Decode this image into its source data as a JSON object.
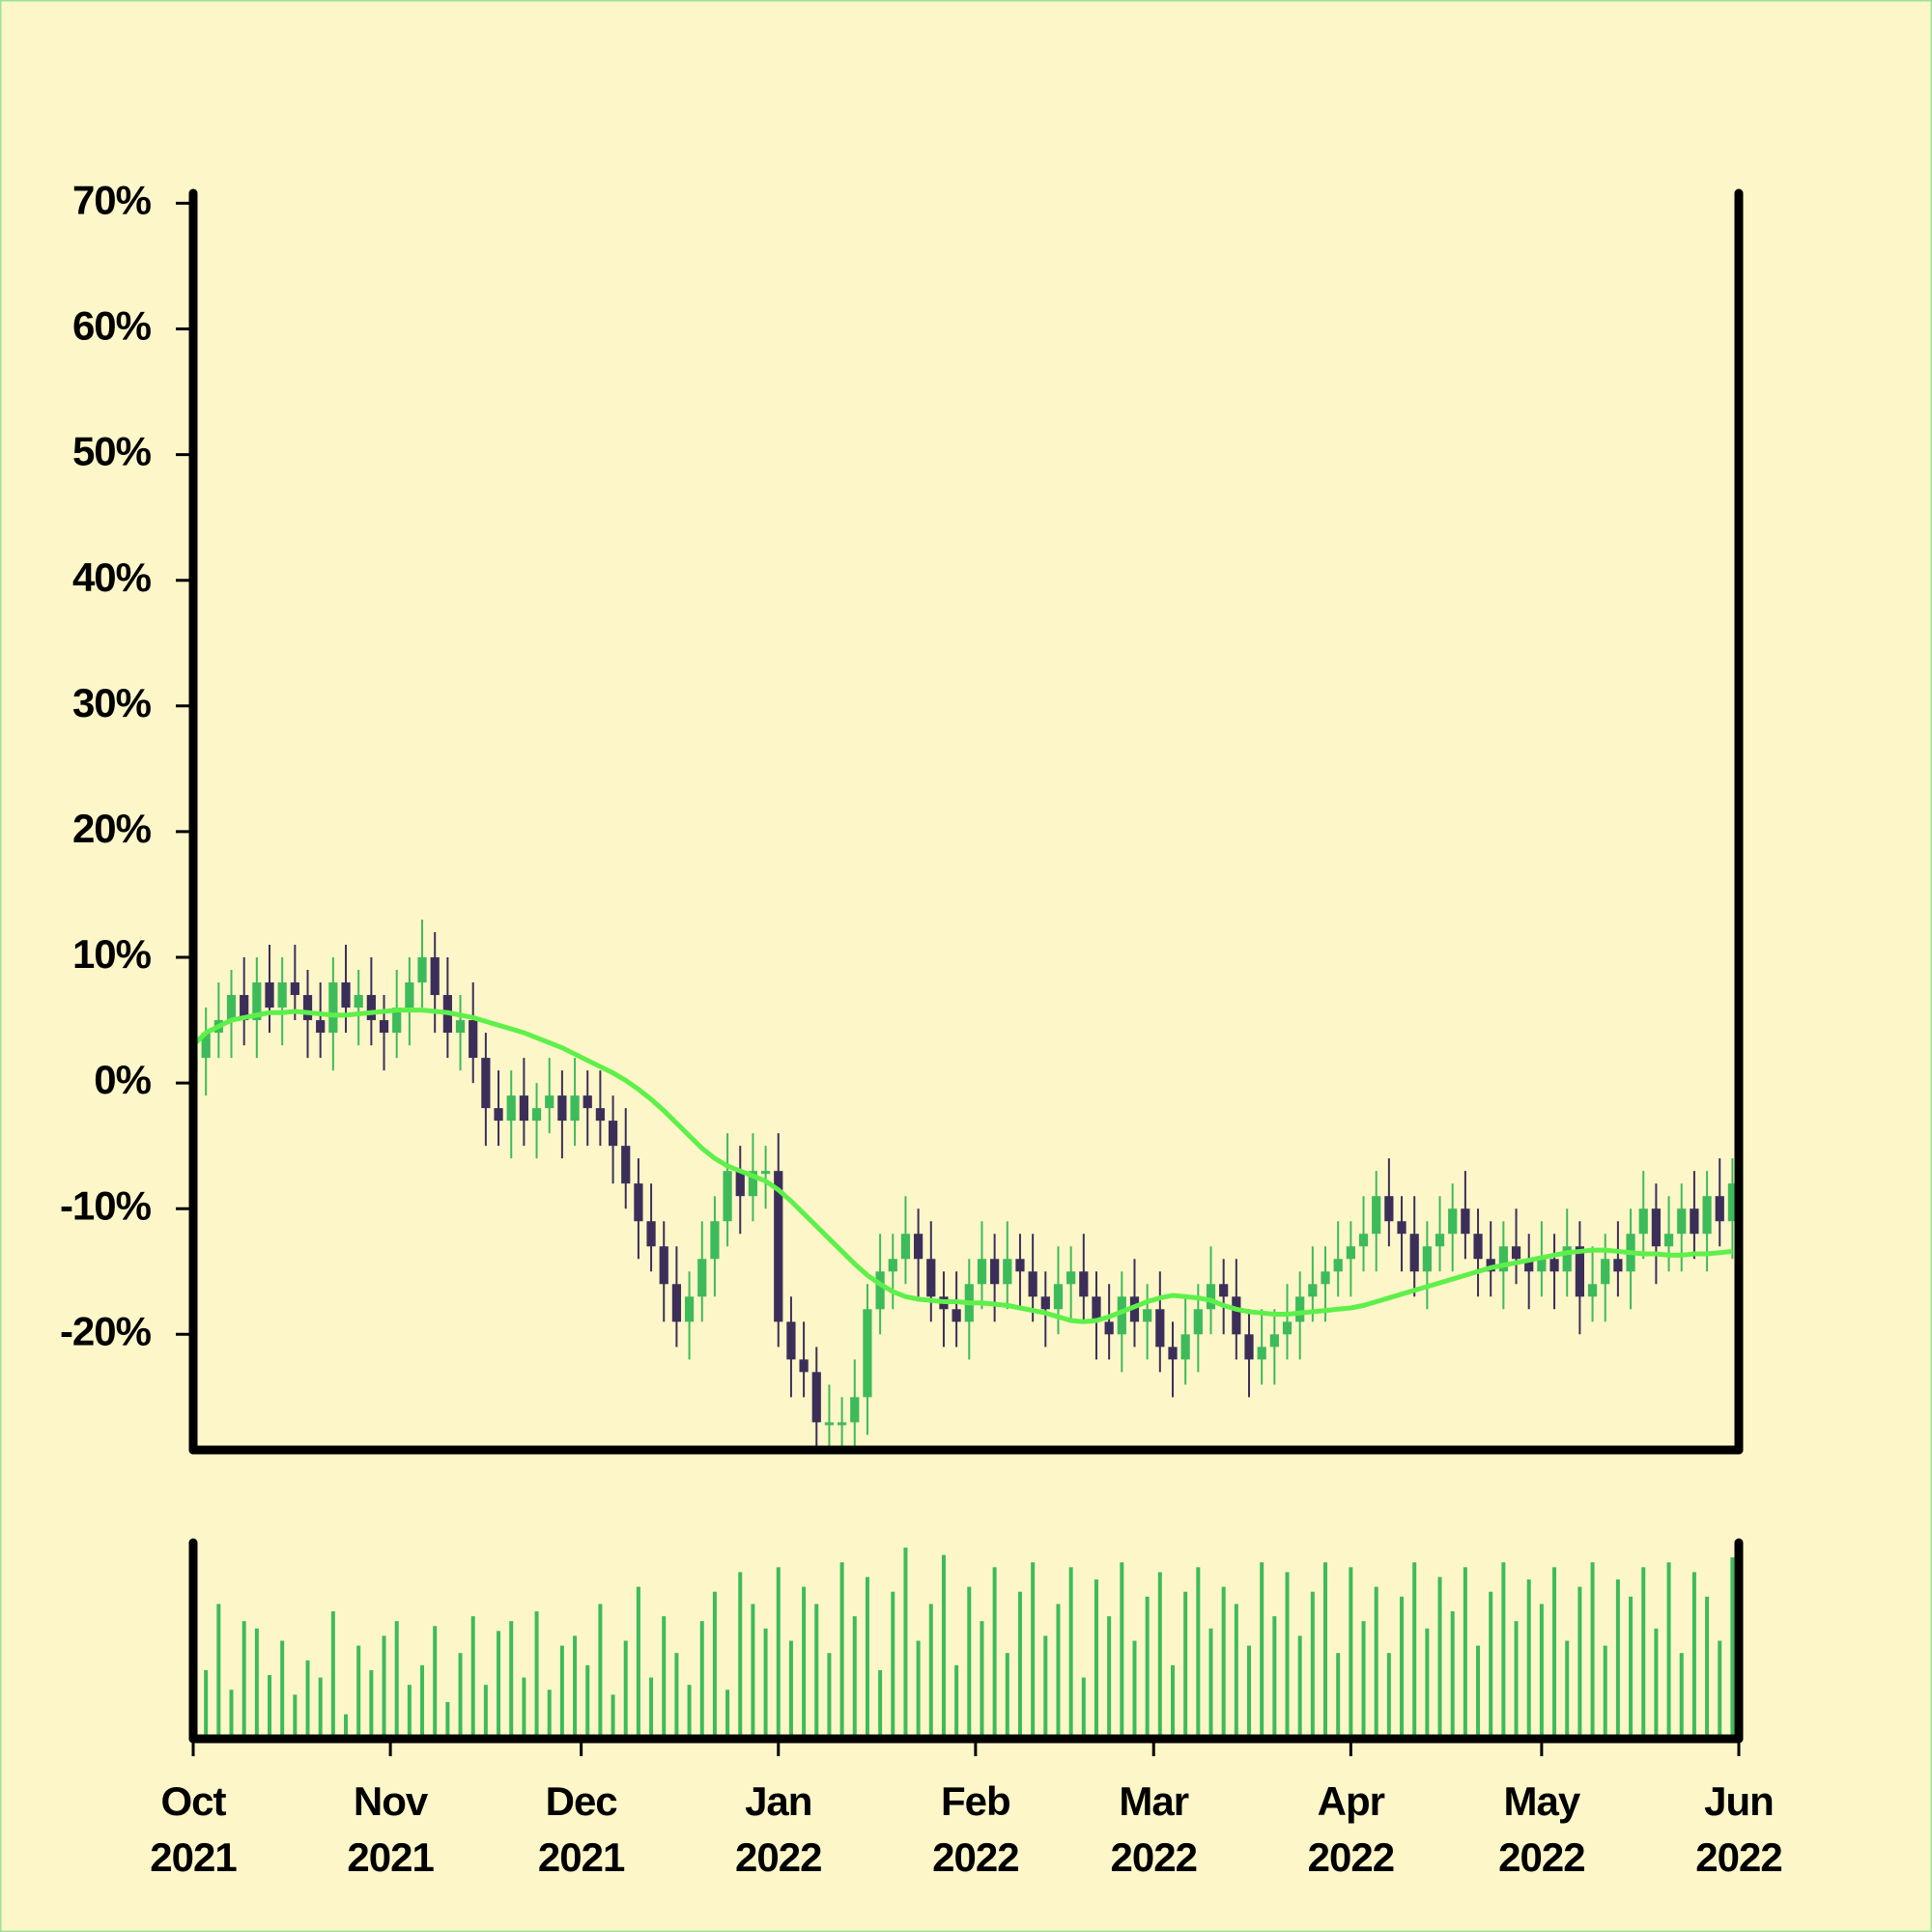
{
  "chart_data": {
    "type": "candlestick",
    "up_color": "#3dbb5a",
    "down_color": "#3b2f5a",
    "ma_color": "#5ef04a",
    "volume_color": "#3dbb5a",
    "xlim": [
      0,
      243
    ],
    "xticks": [
      {
        "value": 0,
        "label": [
          "Oct",
          "2021"
        ]
      },
      {
        "value": 31,
        "label": [
          "Nov",
          "2021"
        ]
      },
      {
        "value": 61,
        "label": [
          "Dec",
          "2021"
        ]
      },
      {
        "value": 92,
        "label": [
          "Jan",
          "2022"
        ]
      },
      {
        "value": 123,
        "label": [
          "Feb",
          "2022"
        ]
      },
      {
        "value": 151,
        "label": [
          "Mar",
          "2022"
        ]
      },
      {
        "value": 182,
        "label": [
          "Apr",
          "2022"
        ]
      },
      {
        "value": 212,
        "label": [
          "May",
          "2022"
        ]
      },
      {
        "value": 243,
        "label": [
          "Jun",
          "2022"
        ]
      }
    ],
    "ylim": [
      -29.2,
      70.8
    ],
    "yticks": [
      {
        "value": -20,
        "label": "-20%"
      },
      {
        "value": -10,
        "label": "-10%"
      },
      {
        "value": 0,
        "label": "0%"
      },
      {
        "value": 10,
        "label": "10%"
      },
      {
        "value": 20,
        "label": "20%"
      },
      {
        "value": 30,
        "label": "30%"
      },
      {
        "value": 40,
        "label": "40%"
      },
      {
        "value": 50,
        "label": "50%"
      },
      {
        "value": 60,
        "label": "60%"
      },
      {
        "value": 70,
        "label": "70%"
      }
    ],
    "volume_lim": [
      0,
      80
    ],
    "x": [
      0,
      2,
      4,
      6,
      8,
      10,
      12,
      14,
      16,
      18,
      20,
      22,
      24,
      26,
      28,
      30,
      32,
      34,
      36,
      38,
      40,
      42,
      44,
      46,
      48,
      50,
      52,
      54,
      56,
      58,
      60,
      62,
      64,
      66,
      68,
      70,
      72,
      74,
      76,
      78,
      80,
      82,
      84,
      86,
      88,
      90,
      92,
      94,
      96,
      98,
      100,
      102,
      104,
      106,
      108,
      110,
      112,
      114,
      116,
      118,
      120,
      122,
      124,
      126,
      128,
      130,
      132,
      134,
      136,
      138,
      140,
      142,
      144,
      146,
      148,
      150,
      152,
      154,
      156,
      158,
      160,
      162,
      164,
      166,
      168,
      170,
      172,
      174,
      176,
      178,
      180,
      182,
      184,
      186,
      188,
      190,
      192,
      194,
      196,
      198,
      200,
      202,
      204,
      206,
      208,
      210,
      212,
      214,
      216,
      218,
      220,
      222,
      224,
      226,
      228,
      230,
      232,
      234,
      236,
      238,
      240,
      242
    ],
    "open": [
      1,
      2,
      4,
      5,
      7,
      5,
      8,
      6,
      8,
      7,
      5,
      4,
      8,
      6,
      7,
      5,
      4,
      6,
      8,
      10,
      7,
      4,
      5,
      2,
      -2,
      -3,
      -1,
      -3,
      -2,
      -1,
      -3,
      -1,
      -2,
      -3,
      -5,
      -8,
      -11,
      -13,
      -16,
      -19,
      -17,
      -14,
      -11,
      -7,
      -9,
      -7,
      -7,
      -19,
      -22,
      -23,
      -27,
      -27,
      -27,
      -25,
      -18,
      -15,
      -14,
      -12,
      -14,
      -17,
      -18,
      -19,
      -16,
      -14,
      -16,
      -14,
      -15,
      -17,
      -18,
      -16,
      -15,
      -17,
      -19,
      -20,
      -17,
      -19,
      -18,
      -21,
      -22,
      -20,
      -18,
      -16,
      -17,
      -20,
      -22,
      -21,
      -20,
      -19,
      -17,
      -16,
      -15,
      -14,
      -13,
      -12,
      -9,
      -11,
      -12,
      -15,
      -13,
      -12,
      -10,
      -12,
      -14,
      -15,
      -13,
      -14,
      -15,
      -14,
      -15,
      -13,
      -17,
      -16,
      -14,
      -15,
      -12,
      -10,
      -13,
      -12,
      -10,
      -12,
      -9,
      -11
    ],
    "high": [
      5,
      6,
      8,
      9,
      10,
      10,
      11,
      10,
      11,
      9,
      8,
      10,
      11,
      9,
      10,
      7,
      9,
      10,
      13,
      12,
      10,
      7,
      8,
      4,
      1,
      1,
      2,
      0,
      2,
      1,
      2,
      1,
      1,
      -1,
      -2,
      -6,
      -8,
      -11,
      -13,
      -15,
      -11,
      -9,
      -4,
      -5,
      -4,
      -5,
      -4,
      -17,
      -19,
      -21,
      -24,
      -25,
      -22,
      -16,
      -12,
      -12,
      -9,
      -10,
      -11,
      -15,
      -15,
      -14,
      -11,
      -12,
      -11,
      -12,
      -12,
      -15,
      -13,
      -13,
      -12,
      -15,
      -16,
      -15,
      -14,
      -16,
      -15,
      -19,
      -17,
      -16,
      -13,
      -14,
      -14,
      -18,
      -18,
      -18,
      -16,
      -15,
      -13,
      -13,
      -11,
      -11,
      -9,
      -7,
      -6,
      -9,
      -9,
      -11,
      -9,
      -8,
      -7,
      -10,
      -11,
      -11,
      -10,
      -12,
      -11,
      -12,
      -10,
      -11,
      -13,
      -12,
      -11,
      -10,
      -7,
      -8,
      -9,
      -8,
      -7,
      -7,
      -6,
      -6
    ],
    "low": [
      -1,
      -1,
      2,
      2,
      3,
      2,
      4,
      3,
      5,
      2,
      2,
      1,
      4,
      3,
      3,
      1,
      2,
      3,
      6,
      4,
      2,
      1,
      0,
      -5,
      -5,
      -6,
      -5,
      -6,
      -4,
      -6,
      -5,
      -5,
      -5,
      -8,
      -10,
      -14,
      -15,
      -19,
      -21,
      -22,
      -19,
      -17,
      -13,
      -12,
      -11,
      -10,
      -21,
      -25,
      -25,
      -29,
      -29,
      -29,
      -29,
      -28,
      -20,
      -18,
      -16,
      -17,
      -19,
      -21,
      -21,
      -22,
      -18,
      -19,
      -18,
      -18,
      -19,
      -21,
      -20,
      -19,
      -19,
      -22,
      -22,
      -23,
      -21,
      -22,
      -23,
      -25,
      -24,
      -23,
      -20,
      -20,
      -22,
      -25,
      -24,
      -24,
      -22,
      -22,
      -19,
      -19,
      -17,
      -17,
      -15,
      -15,
      -13,
      -15,
      -17,
      -18,
      -15,
      -15,
      -14,
      -17,
      -17,
      -18,
      -16,
      -18,
      -17,
      -18,
      -17,
      -20,
      -19,
      -19,
      -17,
      -18,
      -14,
      -16,
      -15,
      -15,
      -14,
      -15,
      -13,
      -14
    ],
    "close": [
      2,
      4,
      5,
      7,
      5,
      8,
      6,
      8,
      7,
      5,
      4,
      8,
      6,
      7,
      5,
      4,
      6,
      8,
      10,
      7,
      4,
      5,
      2,
      -2,
      -3,
      -1,
      -3,
      -2,
      -1,
      -3,
      -1,
      -2,
      -3,
      -5,
      -8,
      -11,
      -13,
      -16,
      -19,
      -17,
      -14,
      -11,
      -7,
      -9,
      -7,
      -7,
      -19,
      -22,
      -23,
      -27,
      -27,
      -27,
      -25,
      -18,
      -15,
      -14,
      -12,
      -14,
      -17,
      -18,
      -19,
      -16,
      -14,
      -16,
      -14,
      -15,
      -17,
      -18,
      -16,
      -15,
      -17,
      -19,
      -20,
      -17,
      -19,
      -18,
      -21,
      -22,
      -20,
      -18,
      -16,
      -17,
      -20,
      -22,
      -21,
      -20,
      -19,
      -17,
      -16,
      -15,
      -14,
      -13,
      -12,
      -9,
      -11,
      -12,
      -15,
      -13,
      -12,
      -10,
      -12,
      -14,
      -15,
      -13,
      -14,
      -15,
      -14,
      -15,
      -13,
      -17,
      -16,
      -14,
      -15,
      -12,
      -10,
      -13,
      -12,
      -10,
      -12,
      -9,
      -11,
      -8
    ],
    "moving_average": [
      3,
      4,
      4.5,
      5,
      5.2,
      5.4,
      5.6,
      5.6,
      5.7,
      5.6,
      5.5,
      5.4,
      5.4,
      5.5,
      5.6,
      5.7,
      5.8,
      5.8,
      5.8,
      5.7,
      5.6,
      5.4,
      5.2,
      4.9,
      4.6,
      4.3,
      4,
      3.6,
      3.2,
      2.8,
      2.3,
      1.8,
      1.3,
      0.8,
      0.2,
      -0.5,
      -1.3,
      -2.2,
      -3.2,
      -4.2,
      -5.2,
      -6,
      -6.6,
      -7,
      -7.4,
      -7.8,
      -8.5,
      -9.4,
      -10.4,
      -11.4,
      -12.4,
      -13.4,
      -14.4,
      -15.3,
      -16,
      -16.6,
      -17,
      -17.2,
      -17.3,
      -17.4,
      -17.4,
      -17.5,
      -17.5,
      -17.6,
      -17.7,
      -17.9,
      -18.1,
      -18.3,
      -18.6,
      -18.9,
      -19,
      -18.9,
      -18.6,
      -18.2,
      -17.8,
      -17.4,
      -17.1,
      -16.9,
      -17,
      -17.1,
      -17.3,
      -17.7,
      -18,
      -18.2,
      -18.3,
      -18.4,
      -18.4,
      -18.3,
      -18.2,
      -18.1,
      -18,
      -17.9,
      -17.7,
      -17.4,
      -17.1,
      -16.8,
      -16.5,
      -16.2,
      -15.9,
      -15.6,
      -15.3,
      -15,
      -14.7,
      -14.5,
      -14.3,
      -14.1,
      -13.9,
      -13.7,
      -13.5,
      -13.4,
      -13.3,
      -13.3,
      -13.4,
      -13.5,
      -13.6,
      -13.6,
      -13.7,
      -13.7,
      -13.6,
      -13.6,
      -13.5,
      -13.4
    ],
    "volume": [
      12,
      28,
      55,
      20,
      48,
      45,
      26,
      40,
      18,
      32,
      25,
      52,
      10,
      38,
      28,
      42,
      48,
      22,
      30,
      46,
      15,
      35,
      50,
      22,
      44,
      48,
      25,
      52,
      20,
      38,
      42,
      30,
      55,
      18,
      40,
      62,
      25,
      50,
      35,
      22,
      48,
      60,
      20,
      68,
      55,
      45,
      70,
      40,
      62,
      55,
      35,
      72,
      50,
      66,
      28,
      60,
      78,
      40,
      55,
      75,
      30,
      62,
      48,
      70,
      35,
      60,
      72,
      42,
      55,
      70,
      25,
      65,
      50,
      72,
      40,
      58,
      68,
      30,
      60,
      70,
      45,
      62,
      55,
      38,
      72,
      50,
      68,
      42,
      60,
      72,
      35,
      70,
      48,
      62,
      35,
      58,
      72,
      45,
      66,
      52,
      70,
      38,
      60,
      72,
      48,
      65,
      55,
      70,
      40,
      62,
      72,
      38,
      65,
      58,
      70,
      45,
      72,
      35,
      68,
      58,
      40,
      74
    ]
  }
}
